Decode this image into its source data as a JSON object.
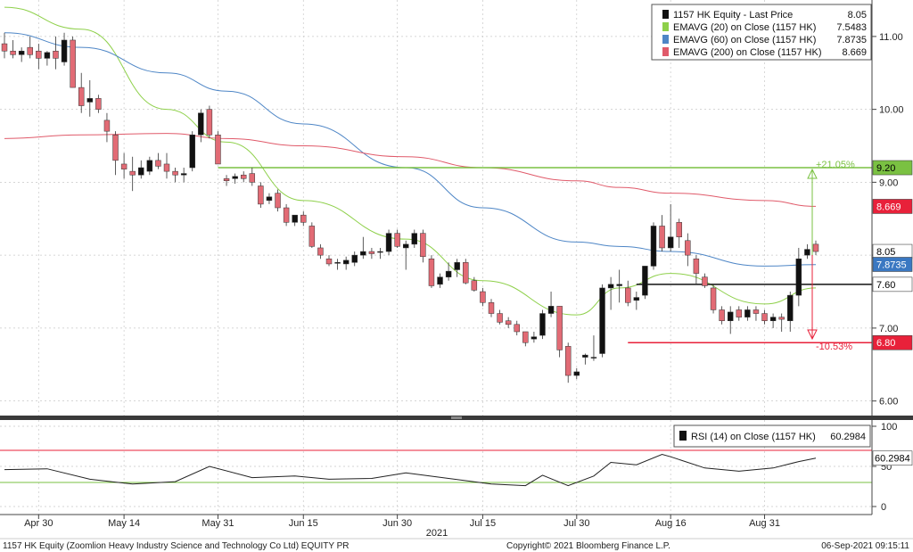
{
  "legend_main": [
    {
      "swatch": "#111111",
      "label": "1157 HK Equity - Last Price",
      "value": "8.05"
    },
    {
      "swatch": "#8ed04a",
      "label": "EMAVG (20)  on Close (1157 HK)",
      "value": "7.5483"
    },
    {
      "swatch": "#4e86c6",
      "label": "EMAVG (60)  on Close (1157 HK)",
      "value": "7.8735"
    },
    {
      "swatch": "#e05a6a",
      "label": "EMAVG (200)  on Close (1157 HK)",
      "value": "8.669"
    }
  ],
  "legend_rsi": {
    "swatch": "#111111",
    "label": "RSI (14)  on Close (1157 HK)",
    "value": "60.2984"
  },
  "tags": [
    {
      "text": "9.20",
      "bg": "#7ac142",
      "fg": "#000000"
    },
    {
      "text": "8.669",
      "bg": "#e8213a",
      "fg": "#ffffff"
    },
    {
      "text": "8.05",
      "bg": "#ffffff",
      "fg": "#000000"
    },
    {
      "text": "7.8735",
      "bg": "#3a78c2",
      "fg": "#ffffff"
    },
    {
      "text": "7.60",
      "bg": "#ffffff",
      "fg": "#000000"
    },
    {
      "text": "6.80",
      "bg": "#e8213a",
      "fg": "#ffffff"
    },
    {
      "text": "60.2984",
      "bg": "#ffffff",
      "fg": "#000000"
    }
  ],
  "annotations": {
    "up_pct": "+21.05%",
    "down_pct": "-10.53%"
  },
  "footer": {
    "left": "1157 HK Equity (Zoomlion Heavy Industry Science and Technology Co Ltd) EQUITY PR",
    "center": "Copyright© 2021 Bloomberg Finance L.P.",
    "right": "06-Sep-2021 09:15:11"
  },
  "colors": {
    "up_candle": "#111111",
    "down_candle": "#e26b75",
    "ema20": "#8ed04a",
    "ema60": "#4e86c6",
    "ema200": "#e05a6a",
    "resistance": "#7ac142",
    "support": "#e8213a",
    "rsi_line": "#222222"
  },
  "chart_data": [
    {
      "type": "candlestick",
      "title": "",
      "x_tick_labels": [
        "Apr 30",
        "May 14",
        "May 31",
        "Jun 15",
        "Jun 30",
        "Jul 15",
        "Jul 30",
        "Aug 16",
        "Aug 31"
      ],
      "x_tick_dates": [
        "2021-04-30",
        "2021-05-14",
        "2021-05-31",
        "2021-06-15",
        "2021-06-30",
        "2021-07-15",
        "2021-07-30",
        "2021-08-16",
        "2021-08-31"
      ],
      "year_label": "2021",
      "y_ticks": [
        "6.00",
        "7.00",
        "8.00",
        "9.00",
        "10.00",
        "11.00"
      ],
      "ylim": [
        5.8,
        11.5
      ],
      "grid": true,
      "legend_position": "top-right",
      "ohlc": [
        [
          "2021-04-26",
          10.9,
          11.05,
          10.7,
          10.8
        ],
        [
          "2021-04-27",
          10.8,
          10.95,
          10.7,
          10.75
        ],
        [
          "2021-04-28",
          10.75,
          10.85,
          10.65,
          10.8
        ],
        [
          "2021-04-29",
          10.85,
          11.0,
          10.7,
          10.75
        ],
        [
          "2021-04-30",
          10.8,
          10.9,
          10.55,
          10.7
        ],
        [
          "2021-05-03",
          10.7,
          10.8,
          10.6,
          10.78
        ],
        [
          "2021-05-04",
          10.8,
          11.0,
          10.55,
          10.7
        ],
        [
          "2021-05-05",
          10.65,
          11.05,
          10.6,
          10.95
        ],
        [
          "2021-05-06",
          10.95,
          11.0,
          10.3,
          10.3
        ],
        [
          "2021-05-07",
          10.3,
          10.5,
          9.95,
          10.05
        ],
        [
          "2021-05-10",
          10.1,
          10.4,
          9.9,
          10.15
        ],
        [
          "2021-05-11",
          10.15,
          10.2,
          9.95,
          10.0
        ],
        [
          "2021-05-12",
          9.85,
          9.95,
          9.55,
          9.7
        ],
        [
          "2021-05-13",
          9.65,
          9.7,
          9.1,
          9.3
        ],
        [
          "2021-05-14",
          9.25,
          9.4,
          9.05,
          9.18
        ],
        [
          "2021-05-17",
          9.15,
          9.35,
          8.88,
          9.1
        ],
        [
          "2021-05-18",
          9.1,
          9.3,
          9.05,
          9.2
        ],
        [
          "2021-05-19",
          9.15,
          9.35,
          9.1,
          9.3
        ],
        [
          "2021-05-20",
          9.3,
          9.4,
          9.18,
          9.22
        ],
        [
          "2021-05-21",
          9.25,
          9.4,
          9.05,
          9.15
        ],
        [
          "2021-05-24",
          9.15,
          9.2,
          9.0,
          9.1
        ],
        [
          "2021-05-25",
          9.1,
          9.2,
          9.0,
          9.12
        ],
        [
          "2021-05-26",
          9.2,
          9.7,
          9.15,
          9.65
        ],
        [
          "2021-05-27",
          9.65,
          10.0,
          9.55,
          9.95
        ],
        [
          "2021-05-28",
          10.0,
          10.05,
          9.6,
          9.65
        ],
        [
          "2021-05-31",
          9.65,
          9.7,
          9.25,
          9.25
        ],
        [
          "2021-06-01",
          9.05,
          9.1,
          8.95,
          9.02
        ],
        [
          "2021-06-02",
          9.05,
          9.12,
          8.98,
          9.08
        ],
        [
          "2021-06-03",
          9.1,
          9.15,
          9.0,
          9.05
        ],
        [
          "2021-06-04",
          9.12,
          9.2,
          8.95,
          9.0
        ],
        [
          "2021-06-07",
          8.95,
          9.0,
          8.65,
          8.7
        ],
        [
          "2021-06-08",
          8.75,
          8.85,
          8.7,
          8.8
        ],
        [
          "2021-06-09",
          8.85,
          8.9,
          8.6,
          8.65
        ],
        [
          "2021-06-10",
          8.65,
          8.7,
          8.4,
          8.45
        ],
        [
          "2021-06-11",
          8.45,
          8.5,
          8.4,
          8.55
        ],
        [
          "2021-06-15",
          8.55,
          8.6,
          8.4,
          8.45
        ],
        [
          "2021-06-16",
          8.4,
          8.45,
          8.1,
          8.12
        ],
        [
          "2021-06-17",
          8.1,
          8.15,
          7.95,
          8.0
        ],
        [
          "2021-06-18",
          7.95,
          8.0,
          7.85,
          7.88
        ],
        [
          "2021-06-21",
          7.9,
          7.95,
          7.8,
          7.9
        ],
        [
          "2021-06-22",
          7.88,
          7.98,
          7.8,
          7.93
        ],
        [
          "2021-06-23",
          7.9,
          8.05,
          7.85,
          8.0
        ],
        [
          "2021-06-24",
          8.0,
          8.25,
          7.95,
          8.05
        ],
        [
          "2021-06-25",
          8.05,
          8.1,
          7.95,
          8.02
        ],
        [
          "2021-06-28",
          8.05,
          8.1,
          7.95,
          8.05
        ],
        [
          "2021-06-29",
          8.05,
          8.35,
          8.0,
          8.3
        ],
        [
          "2021-06-30",
          8.3,
          8.35,
          8.1,
          8.12
        ],
        [
          "2021-07-02",
          8.1,
          8.2,
          7.8,
          8.15
        ],
        [
          "2021-07-05",
          8.15,
          8.35,
          8.1,
          8.3
        ],
        [
          "2021-07-06",
          8.3,
          8.35,
          7.9,
          7.98
        ],
        [
          "2021-07-07",
          7.95,
          8.0,
          7.55,
          7.58
        ],
        [
          "2021-07-08",
          7.6,
          7.75,
          7.55,
          7.7
        ],
        [
          "2021-07-09",
          7.7,
          7.9,
          7.65,
          7.78
        ],
        [
          "2021-07-12",
          7.8,
          7.95,
          7.7,
          7.9
        ],
        [
          "2021-07-13",
          7.9,
          7.95,
          7.6,
          7.62
        ],
        [
          "2021-07-14",
          7.65,
          7.7,
          7.5,
          7.52
        ],
        [
          "2021-07-15",
          7.5,
          7.55,
          7.3,
          7.35
        ],
        [
          "2021-07-16",
          7.35,
          7.4,
          7.15,
          7.2
        ],
        [
          "2021-07-19",
          7.2,
          7.25,
          7.05,
          7.08
        ],
        [
          "2021-07-20",
          7.1,
          7.15,
          7.0,
          7.05
        ],
        [
          "2021-07-21",
          7.05,
          7.1,
          6.9,
          6.95
        ],
        [
          "2021-07-22",
          6.95,
          6.95,
          6.75,
          6.8
        ],
        [
          "2021-07-23",
          6.85,
          6.95,
          6.8,
          6.88
        ],
        [
          "2021-07-26",
          6.9,
          7.25,
          6.85,
          7.2
        ],
        [
          "2021-07-27",
          7.2,
          7.5,
          7.15,
          7.3
        ],
        [
          "2021-07-28",
          7.3,
          7.3,
          6.6,
          6.7
        ],
        [
          "2021-07-29",
          6.75,
          6.8,
          6.25,
          6.35
        ],
        [
          "2021-07-30",
          6.35,
          6.45,
          6.3,
          6.4
        ],
        [
          "2021-08-02",
          6.6,
          6.65,
          6.5,
          6.63
        ],
        [
          "2021-08-03",
          6.6,
          6.9,
          6.55,
          6.6
        ],
        [
          "2021-08-04",
          6.65,
          7.6,
          6.6,
          7.55
        ],
        [
          "2021-08-05",
          7.55,
          7.7,
          7.25,
          7.6
        ],
        [
          "2021-08-06",
          7.58,
          7.8,
          7.35,
          7.6
        ],
        [
          "2021-08-09",
          7.55,
          7.65,
          7.3,
          7.35
        ],
        [
          "2021-08-10",
          7.38,
          7.5,
          7.25,
          7.42
        ],
        [
          "2021-08-11",
          7.45,
          7.85,
          7.4,
          7.85
        ],
        [
          "2021-08-12",
          7.85,
          8.45,
          7.8,
          8.4
        ],
        [
          "2021-08-13",
          8.4,
          8.55,
          8.05,
          8.1
        ],
        [
          "2021-08-16",
          8.1,
          8.7,
          8.05,
          8.25
        ],
        [
          "2021-08-17",
          8.45,
          8.5,
          8.1,
          8.25
        ],
        [
          "2021-08-18",
          8.2,
          8.3,
          7.85,
          8.0
        ],
        [
          "2021-08-19",
          7.95,
          8.0,
          7.6,
          7.75
        ],
        [
          "2021-08-20",
          7.7,
          7.75,
          7.55,
          7.58
        ],
        [
          "2021-08-23",
          7.55,
          7.6,
          7.2,
          7.25
        ],
        [
          "2021-08-24",
          7.25,
          7.3,
          7.05,
          7.1
        ],
        [
          "2021-08-25",
          7.1,
          7.3,
          6.92,
          7.22
        ],
        [
          "2021-08-26",
          7.25,
          7.3,
          7.1,
          7.15
        ],
        [
          "2021-08-27",
          7.15,
          7.3,
          7.1,
          7.25
        ],
        [
          "2021-08-30",
          7.25,
          7.3,
          7.1,
          7.2
        ],
        [
          "2021-08-31",
          7.2,
          7.25,
          7.05,
          7.1
        ],
        [
          "2021-09-01",
          7.1,
          7.2,
          7.0,
          7.15
        ],
        [
          "2021-09-02",
          7.15,
          7.2,
          6.95,
          7.12
        ],
        [
          "2021-09-03",
          7.1,
          7.5,
          6.95,
          7.45
        ],
        [
          "2021-09-06",
          7.45,
          8.1,
          7.3,
          7.95
        ],
        [
          "2021-09-07",
          8.0,
          8.15,
          7.95,
          8.08
        ],
        [
          "2021-09-08",
          8.15,
          8.2,
          8.0,
          8.05
        ]
      ],
      "series": [
        {
          "name": "EMAVG (20)  on Close (1157 HK)",
          "x": [
            "2021-04-26",
            "2021-05-07",
            "2021-05-21",
            "2021-06-01",
            "2021-06-15",
            "2021-07-02",
            "2021-07-15",
            "2021-07-30",
            "2021-08-06",
            "2021-08-16",
            "2021-08-31",
            "2021-09-08"
          ],
          "y": [
            11.4,
            11.1,
            10.0,
            9.55,
            8.75,
            8.22,
            7.65,
            7.18,
            7.55,
            7.75,
            7.33,
            7.55
          ]
        },
        {
          "name": "EMAVG (60)  on Close (1157 HK)",
          "x": [
            "2021-04-26",
            "2021-05-07",
            "2021-05-21",
            "2021-06-01",
            "2021-06-15",
            "2021-07-02",
            "2021-07-15",
            "2021-07-30",
            "2021-08-06",
            "2021-08-16",
            "2021-08-31",
            "2021-09-08"
          ],
          "y": [
            11.05,
            10.85,
            10.5,
            10.25,
            9.8,
            9.2,
            8.65,
            8.18,
            8.12,
            8.05,
            7.85,
            7.87
          ]
        },
        {
          "name": "EMAVG (200)  on Close (1157 HK)",
          "x": [
            "2021-04-26",
            "2021-05-07",
            "2021-05-21",
            "2021-06-01",
            "2021-06-15",
            "2021-07-02",
            "2021-07-15",
            "2021-07-30",
            "2021-08-06",
            "2021-08-16",
            "2021-08-31",
            "2021-09-08"
          ],
          "y": [
            9.6,
            9.65,
            9.67,
            9.6,
            9.5,
            9.35,
            9.2,
            9.02,
            8.93,
            8.85,
            8.75,
            8.67
          ]
        }
      ],
      "lines": [
        {
          "y": 9.2,
          "label": "9.20",
          "color": "#7ac142",
          "from": "2021-05-31",
          "to": "2021-09-08"
        },
        {
          "y": 7.6,
          "label": "7.60",
          "color": "#111111",
          "from": "2021-08-10",
          "to": "2021-09-08"
        },
        {
          "y": 6.8,
          "label": "6.80",
          "color": "#e8213a",
          "from": "2021-08-09",
          "to": "2021-09-08"
        }
      ]
    },
    {
      "type": "line",
      "title": "",
      "y_ticks": [
        "0",
        "50",
        "100"
      ],
      "ylim": [
        0,
        100
      ],
      "reference_lines": [
        30,
        70
      ],
      "series": [
        {
          "name": "RSI (14)  on Close (1157 HK)",
          "x": [
            "2021-04-26",
            "2021-05-03",
            "2021-05-10",
            "2021-05-17",
            "2021-05-24",
            "2021-05-28",
            "2021-06-04",
            "2021-06-11",
            "2021-06-18",
            "2021-06-25",
            "2021-07-02",
            "2021-07-09",
            "2021-07-16",
            "2021-07-22",
            "2021-07-26",
            "2021-07-29",
            "2021-08-03",
            "2021-08-05",
            "2021-08-10",
            "2021-08-13",
            "2021-08-16",
            "2021-08-20",
            "2021-08-26",
            "2021-09-01",
            "2021-09-06",
            "2021-09-08"
          ],
          "y": [
            46,
            47,
            34,
            28,
            31,
            50,
            36,
            38,
            34,
            35,
            42,
            35,
            28,
            26,
            39,
            26,
            38,
            55,
            52,
            65,
            62,
            48,
            44,
            48,
            56,
            60.3
          ]
        }
      ]
    }
  ]
}
